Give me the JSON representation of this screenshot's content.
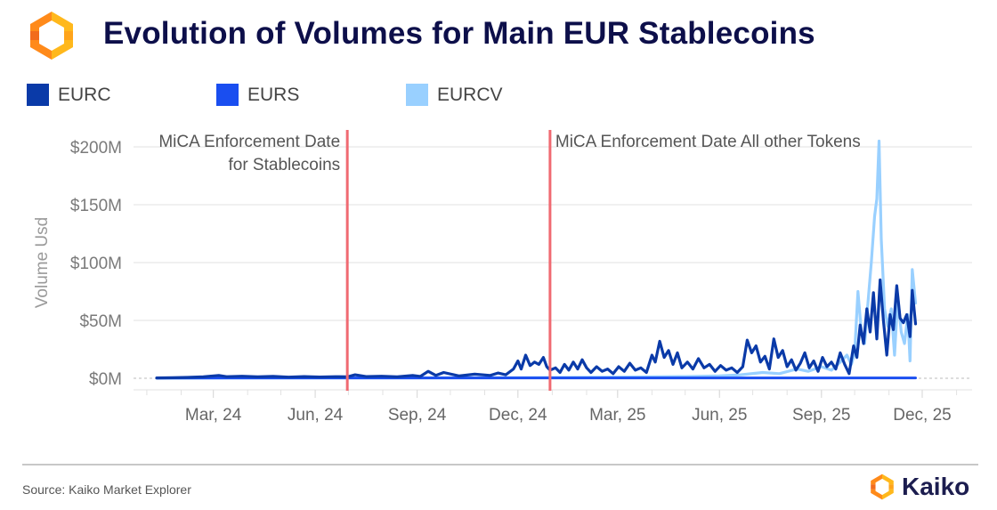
{
  "header": {
    "title": "Evolution of Volumes for Main EUR Stablecoins",
    "logo_icon": "kaiko-hexagon-logo-icon"
  },
  "colors": {
    "title": "#0d0f4a",
    "eurc": "#0a3aa8",
    "eurs": "#1a4ef0",
    "eurcv": "#99d0ff",
    "annotation_line": "#f06a72",
    "brand_orange": "#f7941d",
    "brand_yellow": "#ffb81c"
  },
  "legend": [
    {
      "label": "EURC",
      "color": "#0a3aa8"
    },
    {
      "label": "EURS",
      "color": "#1a4ef0"
    },
    {
      "label": "EURCV",
      "color": "#99d0ff"
    }
  ],
  "footer": {
    "source": "Source: Kaiko Market Explorer",
    "brand": "Kaiko"
  },
  "chart_data": {
    "type": "line",
    "title": "Evolution of Volumes for Main EUR Stablecoins",
    "xlabel": "",
    "ylabel": "Volume Usd",
    "ylim": [
      0,
      200
    ],
    "y_unit": "USD millions",
    "yticks": [
      0,
      50,
      100,
      150,
      200
    ],
    "ytick_labels": [
      "$0M",
      "$50M",
      "$100M",
      "$150M",
      "$200M"
    ],
    "xlim": [
      "2023-12-20",
      "2026-01-15"
    ],
    "xticks": [
      "2024-03-01",
      "2024-06-01",
      "2024-09-01",
      "2024-12-01",
      "2025-03-01",
      "2025-06-01",
      "2025-09-01",
      "2025-12-01"
    ],
    "xtick_labels": [
      "Mar, 24",
      "Jun, 24",
      "Sep, 24",
      "Dec, 24",
      "Mar, 25",
      "Jun, 25",
      "Sep, 25",
      "Dec, 25"
    ],
    "grid": true,
    "legend_position": "top-left",
    "annotations": [
      {
        "date": "2024-06-30",
        "lines": [
          "MiCA Enforcement Date",
          "for Stablecoins"
        ],
        "align": "left-of-line"
      },
      {
        "date": "2024-12-30",
        "lines": [
          "MiCA Enforcement Date All other Tokens"
        ],
        "align": "right-of-line"
      }
    ],
    "series": [
      {
        "name": "EURC",
        "color": "#0a3aa8",
        "points": [
          [
            "2024-01-10",
            0.3
          ],
          [
            "2024-01-24",
            0.5
          ],
          [
            "2024-02-07",
            0.8
          ],
          [
            "2024-02-21",
            1.2
          ],
          [
            "2024-03-06",
            2.5
          ],
          [
            "2024-03-13",
            1.4
          ],
          [
            "2024-03-27",
            1.8
          ],
          [
            "2024-04-10",
            1.2
          ],
          [
            "2024-04-24",
            1.6
          ],
          [
            "2024-05-08",
            1.0
          ],
          [
            "2024-05-22",
            1.5
          ],
          [
            "2024-06-05",
            1.1
          ],
          [
            "2024-06-19",
            1.4
          ],
          [
            "2024-06-30",
            1.2
          ],
          [
            "2024-07-07",
            3.0
          ],
          [
            "2024-07-17",
            1.5
          ],
          [
            "2024-07-31",
            1.8
          ],
          [
            "2024-08-14",
            1.2
          ],
          [
            "2024-08-28",
            2.5
          ],
          [
            "2024-09-04",
            1.6
          ],
          [
            "2024-09-11",
            6.0
          ],
          [
            "2024-09-18",
            2.5
          ],
          [
            "2024-09-25",
            5.0
          ],
          [
            "2024-10-09",
            2.0
          ],
          [
            "2024-10-23",
            3.5
          ],
          [
            "2024-11-06",
            2.5
          ],
          [
            "2024-11-13",
            4.5
          ],
          [
            "2024-11-20",
            3.0
          ],
          [
            "2024-11-27",
            8.0
          ],
          [
            "2024-12-01",
            15.0
          ],
          [
            "2024-12-04",
            8.0
          ],
          [
            "2024-12-08",
            20.0
          ],
          [
            "2024-12-12",
            11.0
          ],
          [
            "2024-12-16",
            14.0
          ],
          [
            "2024-12-20",
            12.0
          ],
          [
            "2024-12-24",
            18.0
          ],
          [
            "2024-12-27",
            10.0
          ],
          [
            "2024-12-30",
            7.0
          ],
          [
            "2025-01-04",
            9.0
          ],
          [
            "2025-01-08",
            5.0
          ],
          [
            "2025-01-12",
            12.0
          ],
          [
            "2025-01-16",
            7.0
          ],
          [
            "2025-01-20",
            14.0
          ],
          [
            "2025-01-24",
            8.0
          ],
          [
            "2025-01-28",
            16.0
          ],
          [
            "2025-02-01",
            9.0
          ],
          [
            "2025-02-05",
            5.0
          ],
          [
            "2025-02-10",
            10.0
          ],
          [
            "2025-02-15",
            6.0
          ],
          [
            "2025-02-20",
            8.0
          ],
          [
            "2025-02-25",
            4.0
          ],
          [
            "2025-03-02",
            10.0
          ],
          [
            "2025-03-07",
            6.0
          ],
          [
            "2025-03-12",
            13.0
          ],
          [
            "2025-03-17",
            7.0
          ],
          [
            "2025-03-22",
            9.0
          ],
          [
            "2025-03-27",
            5.0
          ],
          [
            "2025-04-01",
            20.0
          ],
          [
            "2025-04-04",
            14.0
          ],
          [
            "2025-04-08",
            32.0
          ],
          [
            "2025-04-12",
            18.0
          ],
          [
            "2025-04-16",
            24.0
          ],
          [
            "2025-04-20",
            12.0
          ],
          [
            "2025-04-24",
            22.0
          ],
          [
            "2025-04-28",
            9.0
          ],
          [
            "2025-05-03",
            14.0
          ],
          [
            "2025-05-08",
            8.0
          ],
          [
            "2025-05-13",
            17.0
          ],
          [
            "2025-05-18",
            9.0
          ],
          [
            "2025-05-23",
            12.0
          ],
          [
            "2025-05-28",
            6.0
          ],
          [
            "2025-06-02",
            11.0
          ],
          [
            "2025-06-07",
            7.0
          ],
          [
            "2025-06-12",
            9.0
          ],
          [
            "2025-06-17",
            5.0
          ],
          [
            "2025-06-22",
            10.0
          ],
          [
            "2025-06-26",
            33.0
          ],
          [
            "2025-06-30",
            22.0
          ],
          [
            "2025-07-04",
            28.0
          ],
          [
            "2025-07-08",
            14.0
          ],
          [
            "2025-07-12",
            19.0
          ],
          [
            "2025-07-16",
            8.0
          ],
          [
            "2025-07-20",
            34.0
          ],
          [
            "2025-07-24",
            18.0
          ],
          [
            "2025-07-28",
            24.0
          ],
          [
            "2025-08-01",
            10.0
          ],
          [
            "2025-08-05",
            16.0
          ],
          [
            "2025-08-09",
            7.0
          ],
          [
            "2025-08-13",
            13.0
          ],
          [
            "2025-08-17",
            22.0
          ],
          [
            "2025-08-21",
            9.0
          ],
          [
            "2025-08-25",
            15.0
          ],
          [
            "2025-08-29",
            6.0
          ],
          [
            "2025-09-02",
            18.0
          ],
          [
            "2025-09-06",
            10.0
          ],
          [
            "2025-09-10",
            14.0
          ],
          [
            "2025-09-14",
            8.0
          ],
          [
            "2025-09-18",
            22.0
          ],
          [
            "2025-09-22",
            12.0
          ],
          [
            "2025-09-26",
            4.0
          ],
          [
            "2025-09-30",
            28.0
          ],
          [
            "2025-10-03",
            18.0
          ],
          [
            "2025-10-06",
            46.0
          ],
          [
            "2025-10-09",
            30.0
          ],
          [
            "2025-10-12",
            60.0
          ],
          [
            "2025-10-15",
            40.0
          ],
          [
            "2025-10-18",
            74.0
          ],
          [
            "2025-10-21",
            34.0
          ],
          [
            "2025-10-24",
            85.0
          ],
          [
            "2025-10-27",
            50.0
          ],
          [
            "2025-10-30",
            20.0
          ],
          [
            "2025-11-02",
            55.0
          ],
          [
            "2025-11-05",
            42.0
          ],
          [
            "2025-11-08",
            80.0
          ],
          [
            "2025-11-11",
            52.0
          ],
          [
            "2025-11-14",
            48.0
          ],
          [
            "2025-11-17",
            55.0
          ],
          [
            "2025-11-20",
            36.0
          ],
          [
            "2025-11-22",
            76.0
          ],
          [
            "2025-11-25",
            47.0
          ]
        ]
      },
      {
        "name": "EURS",
        "color": "#1a4ef0",
        "points": [
          [
            "2024-01-10",
            0.2
          ],
          [
            "2024-04-01",
            0.3
          ],
          [
            "2024-07-01",
            0.3
          ],
          [
            "2024-10-01",
            0.3
          ],
          [
            "2025-01-01",
            0.3
          ],
          [
            "2025-04-01",
            0.3
          ],
          [
            "2025-07-01",
            0.3
          ],
          [
            "2025-10-01",
            0.3
          ],
          [
            "2025-11-25",
            0.3
          ]
        ]
      },
      {
        "name": "EURCV",
        "color": "#99d0ff",
        "points": [
          [
            "2024-01-10",
            0.1
          ],
          [
            "2024-06-01",
            0.2
          ],
          [
            "2024-12-01",
            0.5
          ],
          [
            "2025-03-01",
            1.0
          ],
          [
            "2025-05-01",
            1.5
          ],
          [
            "2025-06-01",
            2.0
          ],
          [
            "2025-06-20",
            3.0
          ],
          [
            "2025-07-10",
            5.0
          ],
          [
            "2025-07-25",
            4.0
          ],
          [
            "2025-08-10",
            8.0
          ],
          [
            "2025-08-20",
            6.0
          ],
          [
            "2025-09-01",
            10.0
          ],
          [
            "2025-09-10",
            7.0
          ],
          [
            "2025-09-18",
            14.0
          ],
          [
            "2025-09-24",
            20.0
          ],
          [
            "2025-09-28",
            12.0
          ],
          [
            "2025-10-01",
            22.0
          ],
          [
            "2025-10-04",
            75.0
          ],
          [
            "2025-10-07",
            40.0
          ],
          [
            "2025-10-10",
            30.0
          ],
          [
            "2025-10-13",
            65.0
          ],
          [
            "2025-10-16",
            100.0
          ],
          [
            "2025-10-19",
            140.0
          ],
          [
            "2025-10-21",
            155.0
          ],
          [
            "2025-10-23",
            205.0
          ],
          [
            "2025-10-25",
            120.0
          ],
          [
            "2025-10-28",
            60.0
          ],
          [
            "2025-10-31",
            45.0
          ],
          [
            "2025-11-03",
            60.0
          ],
          [
            "2025-11-06",
            20.0
          ],
          [
            "2025-11-09",
            70.0
          ],
          [
            "2025-11-12",
            40.0
          ],
          [
            "2025-11-15",
            30.0
          ],
          [
            "2025-11-18",
            55.0
          ],
          [
            "2025-11-20",
            15.0
          ],
          [
            "2025-11-22",
            94.0
          ],
          [
            "2025-11-25",
            65.0
          ]
        ]
      }
    ]
  }
}
